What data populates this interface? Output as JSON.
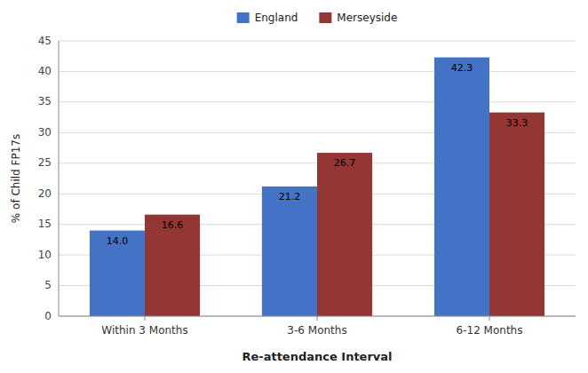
{
  "chart_data": {
    "type": "bar",
    "xlabel": "Re-attendance Interval",
    "ylabel": "% of Child FP17s",
    "categories": [
      "Within 3 Months",
      "3-6 Months",
      "6-12 Months"
    ],
    "series": [
      {
        "name": "England",
        "color": "#4472C4",
        "values": [
          14.0,
          21.2,
          42.3
        ],
        "value_labels": [
          "14.0",
          "21.2",
          "42.3"
        ]
      },
      {
        "name": "Merseyside",
        "color": "#943634",
        "values": [
          16.6,
          26.7,
          33.3
        ],
        "value_labels": [
          "16.6",
          "26.7",
          "33.3"
        ]
      }
    ],
    "ylim": [
      0,
      45
    ],
    "yticks": [
      0,
      5,
      10,
      15,
      20,
      25,
      30,
      35,
      40,
      45
    ],
    "grid": true,
    "legend": "top",
    "data_labels": true
  }
}
